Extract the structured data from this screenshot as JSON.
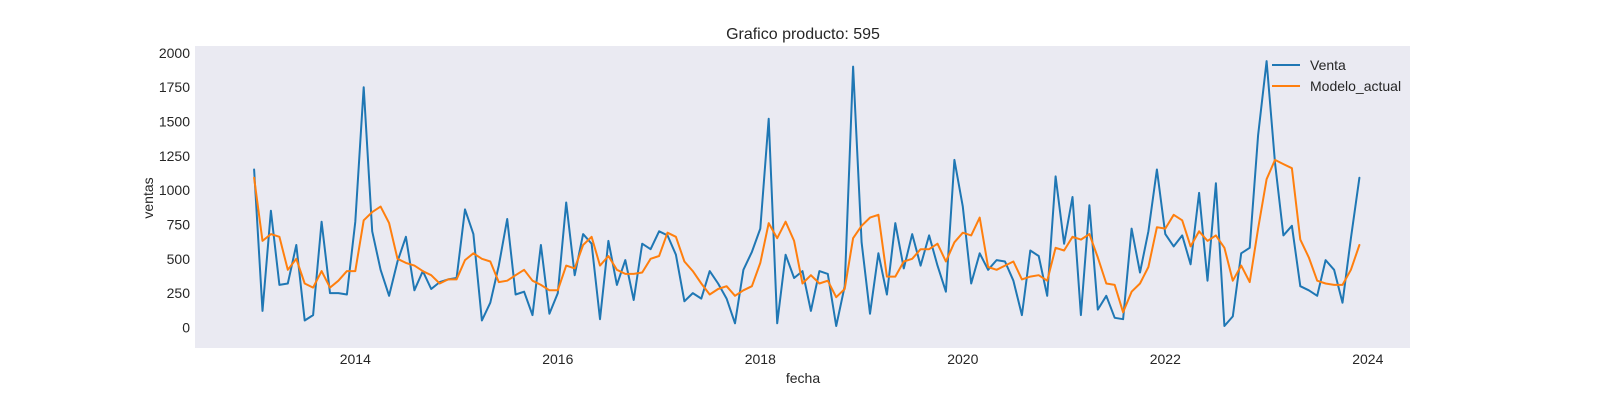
{
  "chart_data": {
    "type": "line",
    "title": "Grafico producto: 595",
    "xlabel": "fecha",
    "ylabel": "ventas",
    "xlim": [
      "2012-06-01",
      "2024-06-01"
    ],
    "ylim": [
      -150,
      2050
    ],
    "x_ticks": [
      "2014",
      "2016",
      "2018",
      "2020",
      "2022",
      "2024"
    ],
    "y_ticks": [
      0,
      250,
      500,
      750,
      1000,
      1250,
      1500,
      1750,
      2000
    ],
    "grid": false,
    "legend_position": "top-right",
    "background": "#eaeaf2",
    "x": [
      "2013-01",
      "2013-02",
      "2013-03",
      "2013-04",
      "2013-05",
      "2013-06",
      "2013-07",
      "2013-08",
      "2013-09",
      "2013-10",
      "2013-11",
      "2013-12",
      "2014-01",
      "2014-02",
      "2014-03",
      "2014-04",
      "2014-05",
      "2014-06",
      "2014-07",
      "2014-08",
      "2014-09",
      "2014-10",
      "2014-11",
      "2014-12",
      "2015-01",
      "2015-02",
      "2015-03",
      "2015-04",
      "2015-05",
      "2015-06",
      "2015-07",
      "2015-08",
      "2015-09",
      "2015-10",
      "2015-11",
      "2015-12",
      "2016-01",
      "2016-02",
      "2016-03",
      "2016-04",
      "2016-05",
      "2016-06",
      "2016-07",
      "2016-08",
      "2016-09",
      "2016-10",
      "2016-11",
      "2016-12",
      "2017-01",
      "2017-02",
      "2017-03",
      "2017-04",
      "2017-05",
      "2017-06",
      "2017-07",
      "2017-08",
      "2017-09",
      "2017-10",
      "2017-11",
      "2017-12",
      "2018-01",
      "2018-02",
      "2018-03",
      "2018-04",
      "2018-05",
      "2018-06",
      "2018-07",
      "2018-08",
      "2018-09",
      "2018-10",
      "2018-11",
      "2018-12",
      "2019-01",
      "2019-02",
      "2019-03",
      "2019-04",
      "2019-05",
      "2019-06",
      "2019-07",
      "2019-08",
      "2019-09",
      "2019-10",
      "2019-11",
      "2019-12",
      "2020-01",
      "2020-02",
      "2020-03",
      "2020-04",
      "2020-05",
      "2020-06",
      "2020-07",
      "2020-08",
      "2020-09",
      "2020-10",
      "2020-11",
      "2020-12",
      "2021-01",
      "2021-02",
      "2021-03",
      "2021-04",
      "2021-05",
      "2021-06",
      "2021-07",
      "2021-08",
      "2021-09",
      "2021-10",
      "2021-11",
      "2021-12",
      "2022-01",
      "2022-02",
      "2022-03",
      "2022-04",
      "2022-05",
      "2022-06",
      "2022-07",
      "2022-08",
      "2022-09",
      "2022-10",
      "2022-11",
      "2022-12",
      "2023-01",
      "2023-02",
      "2023-03",
      "2023-04",
      "2023-05",
      "2023-06",
      "2023-07",
      "2023-08",
      "2023-09",
      "2023-10",
      "2023-11",
      "2023-12"
    ],
    "series": [
      {
        "name": "Venta",
        "color": "#1f77b4",
        "values": [
          1150,
          120,
          850,
          310,
          320,
          600,
          50,
          90,
          770,
          250,
          250,
          240,
          770,
          1750,
          700,
          420,
          230,
          480,
          660,
          270,
          410,
          280,
          330,
          350,
          360,
          860,
          680,
          50,
          180,
          450,
          790,
          240,
          260,
          90,
          600,
          100,
          250,
          910,
          380,
          680,
          610,
          60,
          630,
          310,
          490,
          200,
          610,
          570,
          700,
          670,
          530,
          190,
          250,
          210,
          410,
          320,
          210,
          30,
          420,
          550,
          720,
          1520,
          30,
          530,
          360,
          410,
          120,
          410,
          390,
          10,
          300,
          1900,
          620,
          100,
          540,
          240,
          760,
          430,
          680,
          450,
          670,
          450,
          260,
          1220,
          880,
          320,
          540,
          420,
          490,
          480,
          340,
          90,
          560,
          520,
          230,
          1100,
          610,
          950,
          90,
          890,
          130,
          230,
          70,
          60,
          720,
          400,
          700,
          1150,
          680,
          590,
          670,
          460,
          980,
          340,
          1050,
          10,
          80,
          540,
          580,
          1400,
          1940,
          1200,
          670,
          740,
          300,
          270,
          230,
          490,
          420,
          180,
          650,
          1090
        ]
      },
      {
        "name": "Modelo_actual",
        "color": "#ff7f0e",
        "values": [
          1090,
          630,
          680,
          660,
          420,
          500,
          320,
          290,
          410,
          290,
          340,
          410,
          410,
          780,
          840,
          880,
          760,
          500,
          470,
          450,
          410,
          380,
          320,
          350,
          350,
          490,
          540,
          500,
          480,
          330,
          340,
          380,
          420,
          340,
          310,
          270,
          270,
          450,
          430,
          600,
          660,
          450,
          520,
          420,
          390,
          390,
          400,
          500,
          520,
          690,
          660,
          480,
          410,
          320,
          240,
          280,
          300,
          230,
          270,
          300,
          470,
          760,
          650,
          770,
          630,
          320,
          380,
          320,
          340,
          220,
          280,
          650,
          740,
          800,
          820,
          370,
          370,
          480,
          500,
          570,
          570,
          610,
          480,
          620,
          690,
          670,
          800,
          440,
          420,
          450,
          480,
          350,
          370,
          380,
          340,
          580,
          560,
          660,
          640,
          680,
          510,
          320,
          310,
          110,
          260,
          320,
          440,
          730,
          720,
          820,
          780,
          590,
          700,
          630,
          670,
          580,
          340,
          450,
          330,
          720,
          1080,
          1220,
          1190,
          1160,
          640,
          510,
          340,
          320,
          310,
          310,
          420,
          600
        ]
      }
    ]
  }
}
